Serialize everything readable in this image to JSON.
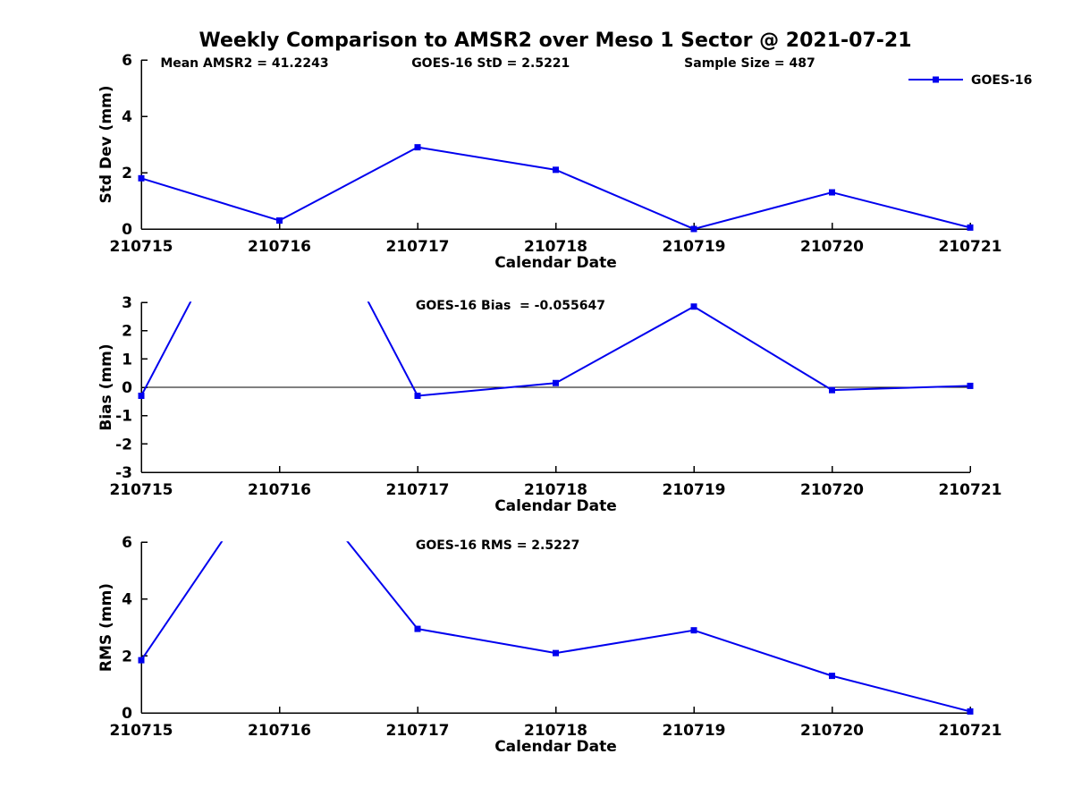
{
  "title": "Weekly Comparison to AMSR2 over Meso 1 Sector @ 2021-07-21",
  "colors": {
    "line": "#0000ee",
    "axis": "#000000",
    "text": "#000000",
    "background": "#ffffff"
  },
  "chart_data": {
    "type": "line",
    "figure_title": "Weekly Comparison to AMSR2 over Meso 1 Sector @ 2021-07-21",
    "categories": [
      "210715",
      "210716",
      "210717",
      "210718",
      "210719",
      "210720",
      "210721"
    ],
    "series_name": "GOES-16",
    "marker": "filled-square",
    "line_color": "#0000ee",
    "legend_label": "GOES-16",
    "legend_position": "upper-right",
    "grid": false,
    "subplots": [
      {
        "name": "std-dev",
        "ylabel": "Std Dev (mm)",
        "xlabel": "Calendar Date",
        "ylim": [
          0,
          6
        ],
        "yticks": [
          0,
          2,
          4,
          6
        ],
        "values": [
          1.8,
          0.3,
          2.9,
          2.1,
          0.0,
          1.3,
          0.05
        ],
        "show_legend": true,
        "annotations": [
          {
            "text": "Mean AMSR2 = 41.2243",
            "xfrac": 0.023
          },
          {
            "text": "GOES-16 StD = 2.5221",
            "xfrac": 0.326
          },
          {
            "text": "Sample Size = 487",
            "xfrac": 0.655
          }
        ]
      },
      {
        "name": "bias",
        "ylabel": "Bias (mm)",
        "xlabel": "Calendar Date",
        "ylim": [
          -3,
          3
        ],
        "yticks": [
          -3,
          -2,
          -1,
          0,
          1,
          2,
          3
        ],
        "zero_line": true,
        "values": [
          -0.3,
          9.0,
          -0.3,
          0.15,
          2.85,
          -0.1,
          0.05
        ],
        "offscale_note": "value at 210716 exceeds y-axis range; line clipped at top",
        "annotations": [
          {
            "text": "GOES-16 Bias  = -0.055647",
            "xfrac": 0.331
          }
        ]
      },
      {
        "name": "rms",
        "ylabel": "RMS (mm)",
        "xlabel": "Calendar Date",
        "ylim": [
          0,
          6
        ],
        "yticks": [
          0,
          2,
          4,
          6
        ],
        "values": [
          1.85,
          9.0,
          2.95,
          2.1,
          2.9,
          1.3,
          0.05
        ],
        "offscale_note": "value at 210716 exceeds y-axis range; line clipped at top",
        "annotations": [
          {
            "text": "GOES-16 RMS = 2.5227",
            "xfrac": 0.331
          }
        ]
      }
    ]
  }
}
